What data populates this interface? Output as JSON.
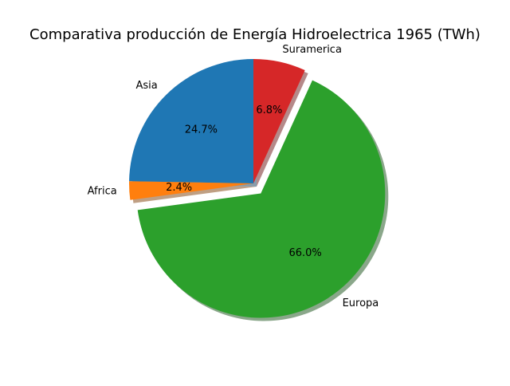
{
  "chart_data": {
    "type": "pie",
    "title": "Comparativa producción de Energía Hidroelectrica 1965 (TWh)",
    "categories": [
      "Asia",
      "Africa",
      "Europa",
      "Suramerica"
    ],
    "values": [
      24.7,
      2.4,
      66.0,
      6.8
    ],
    "percent_labels": [
      "24.7%",
      "2.4%",
      "66.0%",
      "6.8%"
    ],
    "colors": [
      "#1f77b4",
      "#ff7f0e",
      "#2ca02c",
      "#d62728"
    ],
    "exploded": [
      "Europa"
    ],
    "shadow": true,
    "start_angle_deg": 90,
    "direction": "counterclockwise",
    "legend": "none",
    "grid": false
  }
}
